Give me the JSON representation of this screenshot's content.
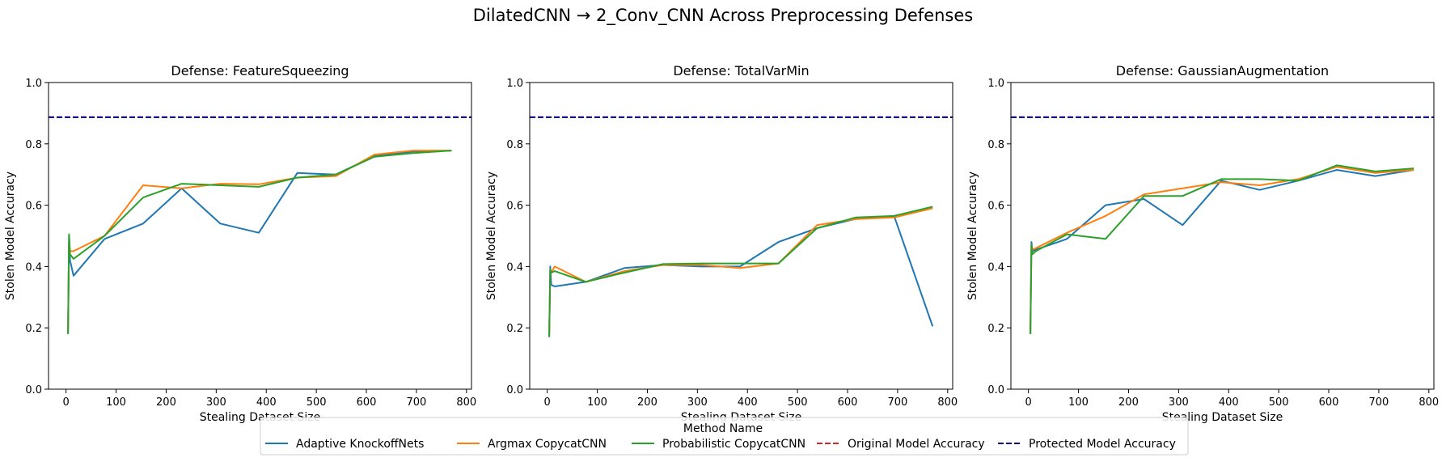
{
  "figure": {
    "suptitle": "DilatedCNN → 2_Conv_CNN Across Preprocessing Defenses"
  },
  "legend": {
    "title": "Method Name",
    "placement": "bottom-center",
    "entries": [
      {
        "label": "Adaptive KnockoffNets",
        "color": "#1f77b4",
        "style": "solid"
      },
      {
        "label": "Argmax CopycatCNN",
        "color": "#ff7f0e",
        "style": "solid"
      },
      {
        "label": "Probabilistic CopycatCNN",
        "color": "#2ca02c",
        "style": "solid"
      },
      {
        "label": "Original Model Accuracy",
        "color": "#d62728",
        "style": "dashed"
      },
      {
        "label": "Protected Model Accuracy",
        "color": "#00008b",
        "style": "dashed"
      }
    ]
  },
  "chart_data": [
    {
      "type": "line",
      "title": "Defense: FeatureSqueezing",
      "xlabel": "Stealing Dataset Size",
      "ylabel": "Stolen Model Accuracy",
      "xlim": [
        -35,
        810
      ],
      "ylim": [
        0,
        1
      ],
      "xticks": [
        0,
        100,
        200,
        300,
        400,
        500,
        600,
        700,
        800
      ],
      "yticks": [
        "0.0",
        "0.2",
        "0.4",
        "0.6",
        "0.8",
        "1.0"
      ],
      "grid": false,
      "reference_lines": [
        {
          "name": "Original Model Accuracy",
          "y": 0.887
        },
        {
          "name": "Protected Model Accuracy",
          "y": 0.887
        }
      ],
      "series": [
        {
          "name": "Adaptive KnockoffNets",
          "x": [
            4,
            6,
            8,
            15,
            77,
            154,
            231,
            308,
            385,
            462,
            539,
            616,
            693,
            770
          ],
          "y": [
            0.18,
            0.5,
            0.42,
            0.37,
            0.49,
            0.54,
            0.655,
            0.54,
            0.51,
            0.705,
            0.7,
            0.76,
            0.775,
            0.778
          ]
        },
        {
          "name": "Argmax CopycatCNN",
          "x": [
            4,
            6,
            8,
            15,
            77,
            154,
            231,
            308,
            385,
            462,
            539,
            616,
            693,
            770
          ],
          "y": [
            0.19,
            0.48,
            0.45,
            0.45,
            0.5,
            0.665,
            0.655,
            0.67,
            0.668,
            0.69,
            0.695,
            0.765,
            0.778,
            0.778
          ]
        },
        {
          "name": "Probabilistic CopycatCNN",
          "x": [
            4,
            6,
            8,
            15,
            77,
            154,
            231,
            308,
            385,
            462,
            539,
            616,
            693,
            770
          ],
          "y": [
            0.18,
            0.505,
            0.44,
            0.425,
            0.5,
            0.625,
            0.67,
            0.665,
            0.66,
            0.69,
            0.7,
            0.758,
            0.77,
            0.778
          ]
        }
      ]
    },
    {
      "type": "line",
      "title": "Defense: TotalVarMin",
      "xlabel": "Stealing Dataset Size",
      "ylabel": "Stolen Model Accuracy",
      "xlim": [
        -35,
        810
      ],
      "ylim": [
        0,
        1
      ],
      "xticks": [
        0,
        100,
        200,
        300,
        400,
        500,
        600,
        700,
        800
      ],
      "yticks": [
        "0.0",
        "0.2",
        "0.4",
        "0.6",
        "0.8",
        "1.0"
      ],
      "grid": false,
      "reference_lines": [
        {
          "name": "Original Model Accuracy",
          "y": 0.887
        },
        {
          "name": "Protected Model Accuracy",
          "y": 0.887
        }
      ],
      "series": [
        {
          "name": "Adaptive KnockoffNets",
          "x": [
            4,
            6,
            8,
            15,
            77,
            154,
            231,
            308,
            385,
            462,
            539,
            616,
            693,
            770
          ],
          "y": [
            0.17,
            0.4,
            0.34,
            0.335,
            0.35,
            0.395,
            0.405,
            0.4,
            0.4,
            0.48,
            0.525,
            0.555,
            0.565,
            0.205
          ]
        },
        {
          "name": "Argmax CopycatCNN",
          "x": [
            4,
            6,
            8,
            15,
            77,
            154,
            231,
            308,
            385,
            462,
            539,
            616,
            693,
            770
          ],
          "y": [
            0.18,
            0.39,
            0.38,
            0.4,
            0.35,
            0.385,
            0.405,
            0.405,
            0.395,
            0.41,
            0.535,
            0.555,
            0.56,
            0.59
          ]
        },
        {
          "name": "Probabilistic CopycatCNN",
          "x": [
            4,
            6,
            8,
            15,
            77,
            154,
            231,
            308,
            385,
            462,
            539,
            616,
            693,
            770
          ],
          "y": [
            0.17,
            0.39,
            0.38,
            0.385,
            0.35,
            0.38,
            0.408,
            0.41,
            0.41,
            0.41,
            0.525,
            0.56,
            0.565,
            0.595
          ]
        }
      ]
    },
    {
      "type": "line",
      "title": "Defense: GaussianAugmentation",
      "xlabel": "Stealing Dataset Size",
      "ylabel": "Stolen Model Accuracy",
      "xlim": [
        -35,
        810
      ],
      "ylim": [
        0,
        1
      ],
      "xticks": [
        0,
        100,
        200,
        300,
        400,
        500,
        600,
        700,
        800
      ],
      "yticks": [
        "0.0",
        "0.2",
        "0.4",
        "0.6",
        "0.8",
        "1.0"
      ],
      "grid": false,
      "reference_lines": [
        {
          "name": "Original Model Accuracy",
          "y": 0.887
        },
        {
          "name": "Protected Model Accuracy",
          "y": 0.887
        }
      ],
      "series": [
        {
          "name": "Adaptive KnockoffNets",
          "x": [
            4,
            6,
            8,
            15,
            77,
            154,
            231,
            308,
            385,
            462,
            539,
            616,
            693,
            770
          ],
          "y": [
            0.18,
            0.48,
            0.45,
            0.455,
            0.49,
            0.6,
            0.62,
            0.535,
            0.68,
            0.65,
            0.68,
            0.715,
            0.695,
            0.715
          ]
        },
        {
          "name": "Argmax CopycatCNN",
          "x": [
            4,
            6,
            8,
            15,
            77,
            154,
            231,
            308,
            385,
            462,
            539,
            616,
            693,
            770
          ],
          "y": [
            0.19,
            0.47,
            0.455,
            0.46,
            0.51,
            0.565,
            0.635,
            0.655,
            0.675,
            0.665,
            0.685,
            0.725,
            0.705,
            0.715
          ]
        },
        {
          "name": "Probabilistic CopycatCNN",
          "x": [
            4,
            6,
            8,
            15,
            77,
            154,
            231,
            308,
            385,
            462,
            539,
            616,
            693,
            770
          ],
          "y": [
            0.18,
            0.47,
            0.44,
            0.45,
            0.505,
            0.49,
            0.63,
            0.63,
            0.685,
            0.685,
            0.68,
            0.73,
            0.71,
            0.72
          ]
        }
      ]
    }
  ]
}
